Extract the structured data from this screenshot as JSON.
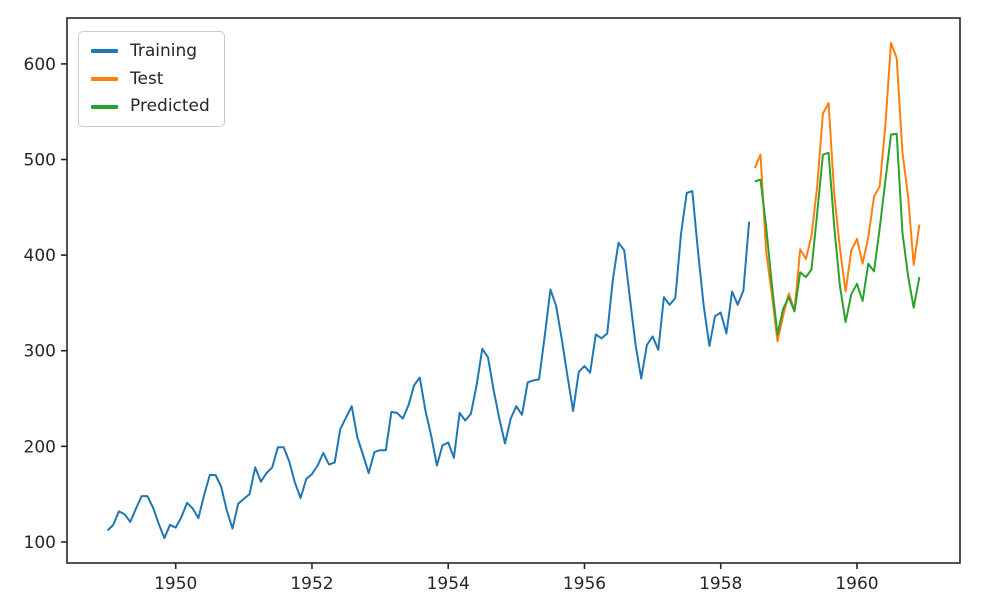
{
  "figure": {
    "background": "#ffffff",
    "axes_color": "#262626",
    "legend_location": "upper left"
  },
  "chart_data": {
    "type": "line",
    "title": "",
    "xlabel": "",
    "ylabel": "",
    "grid": false,
    "markers": false,
    "line_width": 2,
    "x_start": "1949-01",
    "x_end": "1960-12",
    "x_tick_labels": [
      "1950",
      "1952",
      "1954",
      "1956",
      "1958",
      "1960"
    ],
    "x_tick_month_index": [
      12,
      36,
      60,
      84,
      108,
      132
    ],
    "y_tick_labels": [
      "100",
      "200",
      "300",
      "400",
      "500",
      "600"
    ],
    "y_ticks": [
      100,
      200,
      300,
      400,
      500,
      600
    ],
    "ylim": [
      78,
      648
    ],
    "xlim_months": [
      -7.15,
      150.15
    ],
    "legend_position": "upper left",
    "series": [
      {
        "name": "Training",
        "color": "#1f77b4",
        "start_month_index": 0,
        "start_label": "1949-01",
        "end_label": "1958-06",
        "values": [
          112,
          118,
          132,
          129,
          121,
          135,
          148,
          148,
          136,
          119,
          104,
          118,
          115,
          126,
          141,
          135,
          125,
          149,
          170,
          170,
          158,
          133,
          114,
          140,
          145,
          150,
          178,
          163,
          172,
          178,
          199,
          199,
          184,
          162,
          146,
          166,
          171,
          180,
          193,
          181,
          183,
          218,
          230,
          242,
          209,
          191,
          172,
          194,
          196,
          196,
          236,
          235,
          229,
          243,
          264,
          272,
          237,
          211,
          180,
          201,
          204,
          188,
          235,
          227,
          234,
          264,
          302,
          293,
          259,
          229,
          203,
          229,
          242,
          233,
          267,
          269,
          270,
          315,
          364,
          347,
          312,
          274,
          237,
          278,
          284,
          277,
          317,
          313,
          318,
          374,
          413,
          405,
          355,
          306,
          271,
          306,
          315,
          301,
          356,
          348,
          355,
          422,
          465,
          467,
          404,
          347,
          305,
          336,
          340,
          318,
          362,
          348,
          363,
          435
        ]
      },
      {
        "name": "Test",
        "color": "#ff7f0e",
        "start_month_index": 114,
        "start_label": "1958-07",
        "end_label": "1960-12",
        "values": [
          491,
          505,
          404,
          359,
          310,
          337,
          360,
          342,
          406,
          396,
          420,
          472,
          548,
          559,
          463,
          407,
          362,
          405,
          417,
          391,
          419,
          461,
          472,
          535,
          622,
          606,
          508,
          461,
          390,
          432
        ]
      },
      {
        "name": "Predicted",
        "color": "#2ca02c",
        "start_month_index": 114,
        "start_label": "1958-07",
        "end_label": "1960-12",
        "values": [
          477,
          479,
          430,
          370,
          317,
          344,
          356,
          341,
          382,
          377,
          385,
          444,
          505,
          507,
          429,
          368,
          330,
          359,
          370,
          352,
          391,
          383,
          428,
          477,
          526,
          527,
          424,
          378,
          345,
          377
        ]
      }
    ]
  }
}
